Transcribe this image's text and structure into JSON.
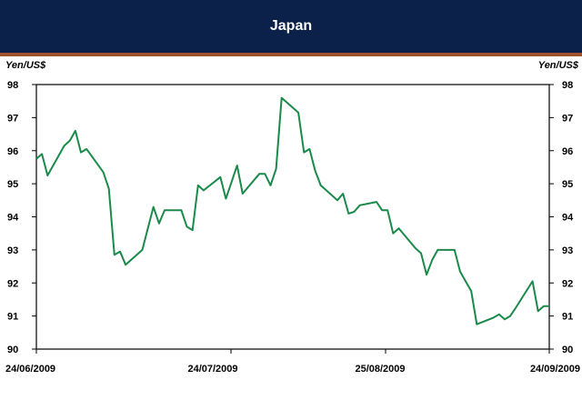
{
  "header": {
    "title": "Japan"
  },
  "chart_data": {
    "type": "line",
    "title": "Japan",
    "ylabel_left": "Yen/US$",
    "ylabel_right": "Yen/US$",
    "ylim": [
      90,
      98
    ],
    "yticks": [
      90,
      91,
      92,
      93,
      94,
      95,
      96,
      97,
      98
    ],
    "xticks": [
      "24/06/2009",
      "24/07/2009",
      "25/08/2009",
      "24/09/2009"
    ],
    "x_range": [
      "2009-06-24",
      "2009-09-24"
    ],
    "grid": false,
    "line_color": "#1a8a4a",
    "series": [
      {
        "x": [
          "2009-06-24",
          "2009-06-25",
          "2009-06-26",
          "2009-06-29",
          "2009-06-30",
          "2009-07-01",
          "2009-07-02",
          "2009-07-03",
          "2009-07-06",
          "2009-07-07",
          "2009-07-08",
          "2009-07-09",
          "2009-07-10",
          "2009-07-13",
          "2009-07-14",
          "2009-07-15",
          "2009-07-16",
          "2009-07-17",
          "2009-07-20",
          "2009-07-21",
          "2009-07-22",
          "2009-07-23",
          "2009-07-24",
          "2009-07-27",
          "2009-07-28",
          "2009-07-29",
          "2009-07-30",
          "2009-07-31",
          "2009-08-03",
          "2009-08-04",
          "2009-08-05",
          "2009-08-06",
          "2009-08-07",
          "2009-08-10",
          "2009-08-11",
          "2009-08-12",
          "2009-08-13",
          "2009-08-14",
          "2009-08-17",
          "2009-08-18",
          "2009-08-19",
          "2009-08-20",
          "2009-08-21",
          "2009-08-24",
          "2009-08-25",
          "2009-08-26",
          "2009-08-27",
          "2009-08-28",
          "2009-08-31",
          "2009-09-01",
          "2009-09-02",
          "2009-09-03",
          "2009-09-04",
          "2009-09-07",
          "2009-09-08",
          "2009-09-09",
          "2009-09-10",
          "2009-09-11",
          "2009-09-14",
          "2009-09-15",
          "2009-09-16",
          "2009-09-17",
          "2009-09-18",
          "2009-09-21",
          "2009-09-22",
          "2009-09-23",
          "2009-09-24"
        ],
        "values": [
          95.75,
          95.9,
          95.25,
          96.15,
          96.3,
          96.6,
          95.95,
          96.05,
          95.35,
          94.85,
          92.85,
          92.95,
          92.55,
          93.0,
          93.65,
          94.3,
          93.8,
          94.2,
          94.2,
          93.7,
          93.6,
          94.95,
          94.8,
          95.2,
          94.55,
          95.05,
          95.55,
          94.7,
          95.3,
          95.3,
          94.95,
          95.45,
          97.6,
          97.15,
          95.95,
          96.05,
          95.4,
          94.95,
          94.5,
          94.7,
          94.1,
          94.15,
          94.35,
          94.45,
          94.2,
          94.2,
          93.5,
          93.65,
          93.05,
          92.9,
          92.25,
          92.7,
          93.0,
          93.0,
          92.35,
          92.05,
          91.75,
          90.75,
          90.95,
          91.05,
          90.9,
          91.0,
          91.25,
          92.05,
          91.15,
          91.3,
          91.3
        ]
      }
    ]
  }
}
